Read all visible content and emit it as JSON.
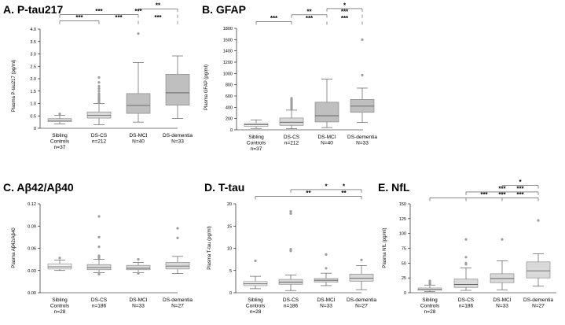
{
  "colors": {
    "light": "#f2f2f2",
    "mid": "#d9d9d9",
    "dark": "#bfbfbf",
    "stroke": "#7f7f7f",
    "outlier": "#9e9e9e"
  },
  "chart_data": [
    {
      "id": "A",
      "type": "box",
      "title": "A. P-tau217",
      "ylabel": "Plasma P-tau217 (pg/ml)",
      "ylim": [
        0,
        4.0
      ],
      "yticks": [
        "0",
        "0.5",
        "1.0",
        "1.5",
        "2.0",
        "2.5",
        "3.0",
        "3.5",
        "4.0"
      ],
      "ytick_values": [
        0,
        0.5,
        1.0,
        1.5,
        2.0,
        2.5,
        3.0,
        3.5,
        4.0
      ],
      "groups": [
        {
          "lines": [
            "Sibling",
            "Controls",
            "n=37"
          ],
          "fill": "light",
          "min": 0.18,
          "q1": 0.27,
          "median": 0.32,
          "q3": 0.39,
          "max": 0.52,
          "outliers": [
            0.58
          ]
        },
        {
          "lines": [
            "DS-CS",
            "n=212"
          ],
          "fill": "mid",
          "min": 0.15,
          "q1": 0.41,
          "median": 0.52,
          "q3": 0.66,
          "max": 1.0,
          "outliers": [
            1.05,
            1.1,
            1.12,
            1.15,
            1.2,
            1.25,
            1.3,
            1.35,
            1.4,
            1.5,
            1.6,
            1.7,
            1.85,
            2.05
          ]
        },
        {
          "lines": [
            "DS-MCI",
            "N=40"
          ],
          "fill": "dark",
          "min": 0.25,
          "q1": 0.6,
          "median": 0.92,
          "q3": 1.4,
          "max": 2.65,
          "outliers": [
            3.82
          ]
        },
        {
          "lines": [
            "DS-dementia",
            "N=33"
          ],
          "fill": "dark",
          "min": 0.4,
          "q1": 0.93,
          "median": 1.43,
          "q3": 2.18,
          "max": 2.92,
          "outliers": []
        }
      ],
      "brackets": [
        {
          "from": 1,
          "to": 0,
          "bar_y": 4.33,
          "drops": [
            1,
            2,
            3
          ],
          "sig": "***"
        },
        {
          "from": 2,
          "to": 1,
          "bar_y": 4.33,
          "sig": "***"
        },
        {
          "from": 3,
          "to": 2,
          "bar_y": 4.33,
          "sig": "***"
        },
        {
          "from": 2,
          "to": 0,
          "bar_y": 4.58,
          "drops": [
            2,
            3
          ],
          "sig": "***"
        },
        {
          "from": 3,
          "to": 1,
          "bar_y": 4.58,
          "sig": "***"
        },
        {
          "from": 3,
          "to": 2,
          "bar_y": 4.82,
          "drops": [
            3
          ],
          "sig": "**"
        }
      ]
    },
    {
      "id": "B",
      "type": "box",
      "title": "B. GFAP",
      "ylabel": "Plasma GFAP (pg/ml)",
      "ylim": [
        0,
        1800
      ],
      "yticks": [
        "0",
        "200",
        "400",
        "600",
        "800",
        "1000",
        "1200",
        "1400",
        "1600",
        "1800"
      ],
      "ytick_values": [
        0,
        200,
        400,
        600,
        800,
        1000,
        1200,
        1400,
        1600,
        1800
      ],
      "groups": [
        {
          "lines": [
            "Sibling",
            "Controls",
            "n=37"
          ],
          "fill": "light",
          "min": 25,
          "q1": 60,
          "median": 90,
          "q3": 115,
          "max": 175,
          "outliers": []
        },
        {
          "lines": [
            "DS-CS",
            "n=212"
          ],
          "fill": "mid",
          "min": 20,
          "q1": 80,
          "median": 135,
          "q3": 210,
          "max": 350,
          "outliers": [
            360,
            380,
            400,
            420,
            440,
            460,
            480,
            500,
            520,
            540,
            560
          ]
        },
        {
          "lines": [
            "DS-MCI",
            "N=40"
          ],
          "fill": "dark",
          "min": 40,
          "q1": 140,
          "median": 250,
          "q3": 490,
          "max": 900,
          "outliers": []
        },
        {
          "lines": [
            "DS-dementia",
            "N=33"
          ],
          "fill": "dark",
          "min": 130,
          "q1": 310,
          "median": 420,
          "q3": 540,
          "max": 740,
          "outliers": [
            970,
            1600
          ]
        }
      ],
      "brackets": [
        {
          "from": 1,
          "to": 0,
          "bar_y": 1920,
          "drops": [
            1,
            2,
            3
          ],
          "sig": "***"
        },
        {
          "from": 2,
          "to": 1,
          "bar_y": 1920,
          "sig": "***"
        },
        {
          "from": 3,
          "to": 2,
          "bar_y": 1920,
          "sig": "***"
        },
        {
          "from": 2,
          "to": 1,
          "bar_y": 2040,
          "drops": [
            2,
            3
          ],
          "sig": "**"
        },
        {
          "from": 3,
          "to": 2,
          "bar_y": 2040,
          "sig": "***"
        },
        {
          "from": 3,
          "to": 2,
          "bar_y": 2150,
          "drops": [
            3
          ],
          "sig": "*"
        }
      ]
    },
    {
      "id": "C",
      "type": "box",
      "title": "C. Aβ42/Aβ40",
      "ylabel": "Plasma Aβ42/Aβ40",
      "ylim": [
        0,
        0.12
      ],
      "yticks": [
        "0.00",
        "0.03",
        "0.06",
        "0.09",
        "0.12"
      ],
      "ytick_values": [
        0,
        0.03,
        0.06,
        0.09,
        0.12
      ],
      "groups": [
        {
          "lines": [
            "Sibling",
            "Controls",
            "n=28"
          ],
          "fill": "light",
          "min": 0.03,
          "q1": 0.032,
          "median": 0.035,
          "q3": 0.039,
          "max": 0.044,
          "outliers": [
            0.047
          ]
        },
        {
          "lines": [
            "DS-CS",
            "n=186"
          ],
          "fill": "mid",
          "min": 0.027,
          "q1": 0.031,
          "median": 0.034,
          "q3": 0.038,
          "max": 0.045,
          "outliers": [
            0.025,
            0.026,
            0.047,
            0.049,
            0.05,
            0.062,
            0.075,
            0.103
          ]
        },
        {
          "lines": [
            "DS-MCI",
            "N=33"
          ],
          "fill": "mid",
          "min": 0.027,
          "q1": 0.031,
          "median": 0.033,
          "q3": 0.037,
          "max": 0.041,
          "outliers": [
            0.026,
            0.045
          ]
        },
        {
          "lines": [
            "DS-dementia",
            "N=27"
          ],
          "fill": "mid",
          "min": 0.026,
          "q1": 0.032,
          "median": 0.036,
          "q3": 0.041,
          "max": 0.049,
          "outliers": [
            0.074,
            0.087
          ]
        }
      ],
      "brackets": []
    },
    {
      "id": "D",
      "type": "box",
      "title": "D. T-tau",
      "ylabel": "Plasma T-tau (pg/ml)",
      "ylim": [
        0,
        20
      ],
      "yticks": [
        "0",
        "5",
        "10",
        "15",
        "20"
      ],
      "ytick_values": [
        0,
        5,
        10,
        15,
        20
      ],
      "groups": [
        {
          "lines": [
            "Sibling",
            "Controls",
            "n=28"
          ],
          "fill": "light",
          "min": 0.9,
          "q1": 1.6,
          "median": 2.0,
          "q3": 2.5,
          "max": 3.7,
          "outliers": [
            7.2
          ]
        },
        {
          "lines": [
            "DS-CS",
            "n=186"
          ],
          "fill": "mid",
          "min": 0.5,
          "q1": 1.9,
          "median": 2.4,
          "q3": 3.0,
          "max": 4.0,
          "outliers": [
            9.4,
            9.8,
            17.8,
            18.3
          ]
        },
        {
          "lines": [
            "DS-MCI",
            "N=33"
          ],
          "fill": "mid",
          "min": 1.6,
          "q1": 2.4,
          "median": 2.8,
          "q3": 3.2,
          "max": 4.4,
          "outliers": [
            5.5,
            8.6
          ]
        },
        {
          "lines": [
            "DS-dementia",
            "N=27"
          ],
          "fill": "mid",
          "min": 0.7,
          "q1": 2.6,
          "median": 3.3,
          "q3": 4.2,
          "max": 6.1,
          "outliers": [
            7.4
          ]
        }
      ],
      "brackets": [
        {
          "from": 3,
          "to": 0,
          "bar_y": 21.7,
          "drops": [
            3
          ],
          "sig": "**"
        },
        {
          "from": 3,
          "to": 2,
          "bar_y": 21.7,
          "sig": "**"
        },
        {
          "from": 3,
          "to": 1,
          "bar_y": 23.2,
          "drops": [
            3
          ],
          "sig": "*"
        },
        {
          "from": 3,
          "to": 2,
          "bar_y": 23.2,
          "sig": "*"
        }
      ]
    },
    {
      "id": "E",
      "type": "box",
      "title": "E. NfL",
      "ylabel": "Plasma NfL (pg/ml)",
      "ylim": [
        0,
        150
      ],
      "yticks": [
        "0",
        "25",
        "50",
        "75",
        "100",
        "125",
        "150"
      ],
      "ytick_values": [
        0,
        25,
        50,
        75,
        100,
        125,
        150
      ],
      "groups": [
        {
          "lines": [
            "Sibling",
            "Controls",
            "n=28"
          ],
          "fill": "light",
          "min": 2,
          "q1": 4,
          "median": 6,
          "q3": 8,
          "max": 13,
          "outliers": [
            15,
            17,
            20
          ]
        },
        {
          "lines": [
            "DS-CS",
            "n=186"
          ],
          "fill": "mid",
          "min": 4,
          "q1": 9,
          "median": 14,
          "q3": 23,
          "max": 42,
          "outliers": [
            48,
            50,
            60,
            90
          ]
        },
        {
          "lines": [
            "DS-MCI",
            "N=33"
          ],
          "fill": "mid",
          "min": 5,
          "q1": 17,
          "median": 24,
          "q3": 32,
          "max": 54,
          "outliers": [
            90
          ]
        },
        {
          "lines": [
            "DS-dementia",
            "N=27"
          ],
          "fill": "mid",
          "min": 11,
          "q1": 25,
          "median": 37,
          "q3": 52,
          "max": 66,
          "outliers": [
            122
          ]
        }
      ],
      "brackets": [
        {
          "from": 3,
          "to": 0,
          "bar_y": 160,
          "drops": [
            1,
            2,
            3
          ],
          "sig": "***"
        },
        {
          "from": 3,
          "to": 1,
          "bar_y": 160,
          "sig": "***"
        },
        {
          "from": 3,
          "to": 2,
          "bar_y": 160,
          "sig": "***"
        },
        {
          "from": 3,
          "to": 1,
          "bar_y": 170,
          "drops": [
            2,
            3
          ],
          "sig": "***"
        },
        {
          "from": 3,
          "to": 2,
          "bar_y": 170,
          "sig": "***"
        },
        {
          "from": 3,
          "to": 2,
          "bar_y": 181,
          "drops": [
            3
          ],
          "sig": "*"
        }
      ]
    }
  ]
}
